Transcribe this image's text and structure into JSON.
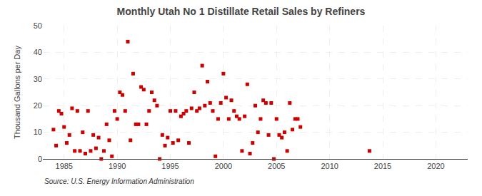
{
  "chart_data": {
    "type": "scatter",
    "title": "Monthly Utah No 1 Distillate Retail Sales by Refiners",
    "ylabel": "Thousand Gallons per Day",
    "source": "Source: U.S. Energy Information Administration",
    "color": "#cc0000",
    "marker": "square",
    "grid": true,
    "xlim": [
      1983,
      2023
    ],
    "ylim": [
      0,
      50
    ],
    "xticks": [
      1985,
      1990,
      1995,
      2000,
      2005,
      2010,
      2015,
      2020
    ],
    "yticks": [
      0,
      10,
      20,
      30,
      40,
      50
    ],
    "x": [
      1984.0,
      1984.25,
      1984.5,
      1984.75,
      1985.0,
      1985.25,
      1985.5,
      1985.75,
      1986.0,
      1986.25,
      1986.5,
      1986.75,
      1987.0,
      1987.25,
      1987.5,
      1987.75,
      1988.0,
      1988.25,
      1988.5,
      1988.75,
      1989.0,
      1989.25,
      1989.5,
      1989.75,
      1990.0,
      1990.25,
      1990.5,
      1990.75,
      1991.0,
      1991.25,
      1991.5,
      1991.75,
      1992.0,
      1992.25,
      1992.5,
      1992.75,
      1993.0,
      1993.25,
      1993.5,
      1993.75,
      1994.0,
      1994.25,
      1994.5,
      1994.75,
      1995.0,
      1995.25,
      1995.5,
      1995.75,
      1996.0,
      1996.25,
      1996.5,
      1996.75,
      1997.0,
      1997.25,
      1997.5,
      1997.75,
      1998.0,
      1998.25,
      1998.5,
      1998.75,
      1999.0,
      1999.25,
      1999.5,
      1999.75,
      2000.0,
      2000.25,
      2000.5,
      2000.75,
      2001.0,
      2001.25,
      2001.5,
      2001.75,
      2002.0,
      2002.25,
      2002.5,
      2002.75,
      2003.0,
      2003.25,
      2003.5,
      2003.75,
      2004.0,
      2004.25,
      2004.5,
      2004.75,
      2005.0,
      2005.25,
      2005.5,
      2005.75,
      2006.0,
      2006.25,
      2006.5,
      2006.75,
      2007.0,
      2007.25,
      2013.75
    ],
    "values": [
      11,
      5,
      18,
      17,
      12,
      6,
      9,
      19,
      3,
      18,
      3,
      10,
      2,
      18,
      3,
      9,
      4,
      8,
      0,
      3,
      13,
      7,
      1,
      18,
      15,
      25,
      24,
      18,
      44,
      7,
      32,
      13,
      13,
      27,
      26,
      13,
      18,
      25,
      22,
      20,
      0,
      9,
      5,
      8,
      18,
      6,
      18,
      7,
      16,
      17,
      18,
      6,
      19,
      25,
      18,
      19,
      35,
      20,
      29,
      21,
      18,
      1,
      15,
      21,
      32,
      23,
      15,
      22,
      18,
      16,
      15,
      3,
      16,
      28,
      2,
      6,
      20,
      10,
      15,
      22,
      21,
      9,
      21,
      0,
      15,
      9,
      8,
      10,
      3,
      21,
      11,
      15,
      15,
      12,
      3
    ]
  }
}
